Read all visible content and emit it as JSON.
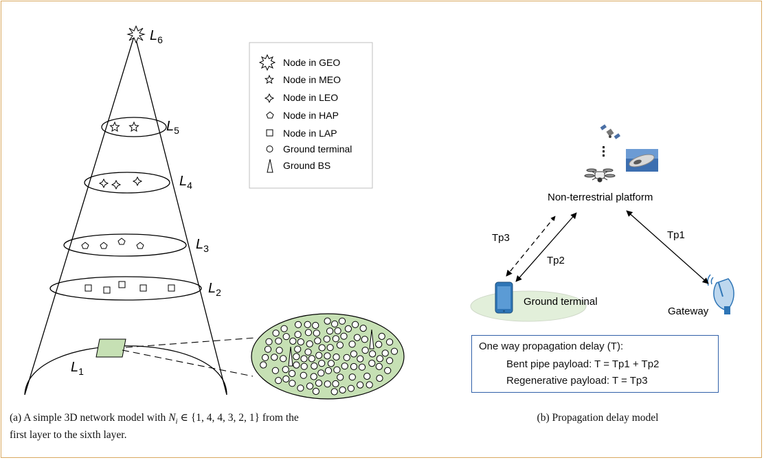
{
  "left_diagram": {
    "layer_labels": {
      "L1": {
        "main": "L",
        "sub": "1"
      },
      "L2": {
        "main": "L",
        "sub": "2"
      },
      "L3": {
        "main": "L",
        "sub": "3"
      },
      "L4": {
        "main": "L",
        "sub": "4"
      },
      "L5": {
        "main": "L",
        "sub": "5"
      },
      "L6": {
        "main": "L",
        "sub": "6"
      }
    },
    "legend": [
      {
        "icon": "geo-star-icon",
        "label": "Node in GEO"
      },
      {
        "icon": "meo-star-icon",
        "label": "Node in MEO"
      },
      {
        "icon": "leo-star-icon",
        "label": "Node in LEO"
      },
      {
        "icon": "pentagon-icon",
        "label": "Node in HAP"
      },
      {
        "icon": "square-icon",
        "label": "Node in LAP"
      },
      {
        "icon": "circle-icon",
        "label": "Ground terminal"
      },
      {
        "icon": "tower-icon",
        "label": "Ground BS"
      }
    ],
    "colors": {
      "ground_fill": "#c6e0b4",
      "outline": "#000000"
    }
  },
  "right_diagram": {
    "platform_label": "Non-terrestrial platform",
    "ground_terminal_label": "Ground terminal",
    "gateway_label": "Gateway",
    "links": {
      "tp1": "Tp1",
      "tp2": "Tp2",
      "tp3": "Tp3"
    },
    "delay_box": {
      "title": "One way propagation delay (T):",
      "line1": "Bent pipe payload: T = Tp1 + Tp2",
      "line2": "Regenerative payload: T = Tp3"
    },
    "colors": {
      "box_border": "#2f5fa8",
      "ground_ellipse": "#e2efda",
      "phone": "#2e75b6"
    }
  },
  "captions": {
    "a_prefix": "(a) A simple 3D network model with ",
    "a_math": "N",
    "a_math_sub": "i",
    "a_math_rest": " ∈ {1, 4, 4, 3, 2, 1} from the",
    "a_line2": "first layer to the sixth layer.",
    "b": "(b) Propagation delay model"
  }
}
